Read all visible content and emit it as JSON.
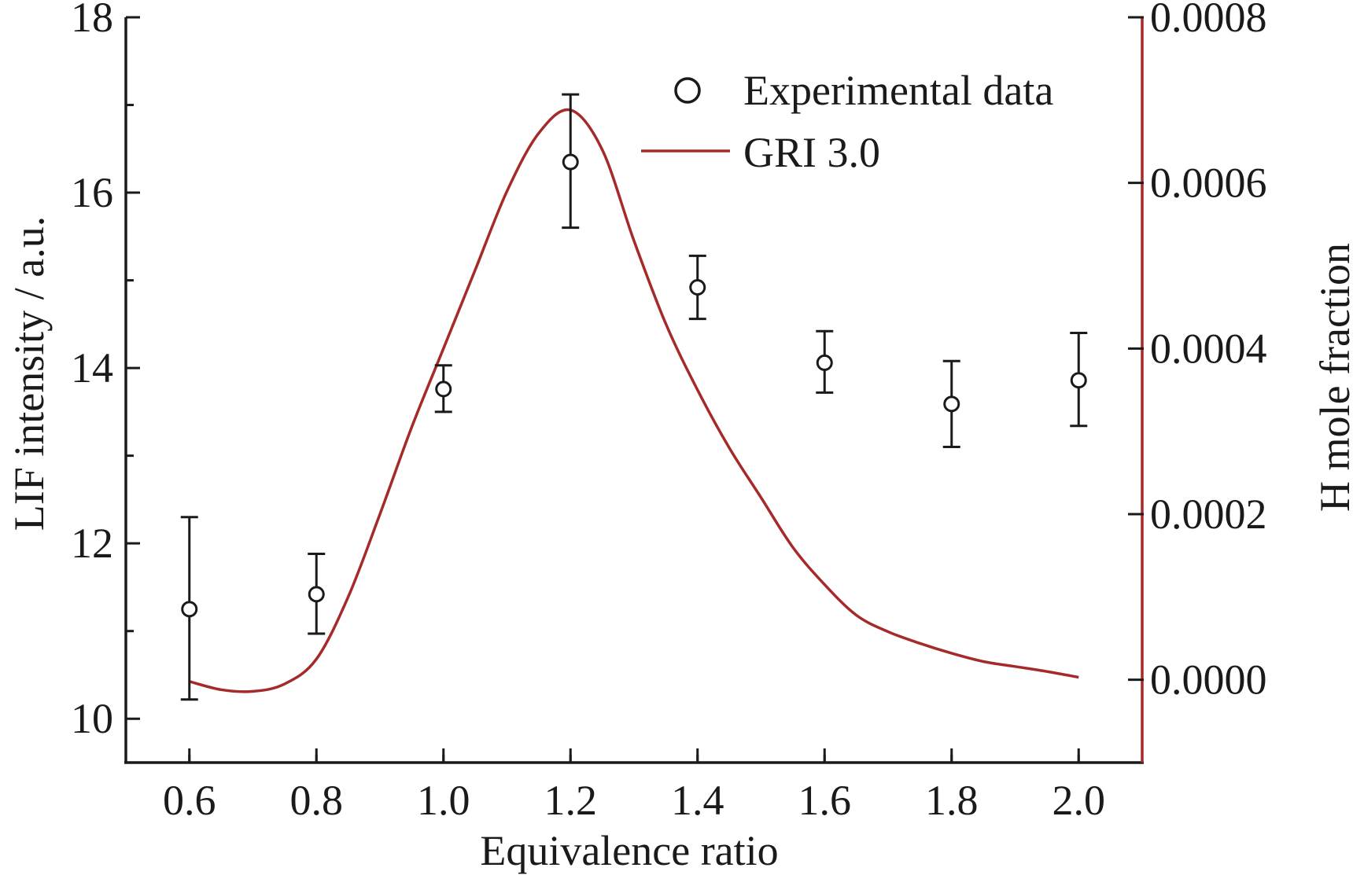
{
  "chart_data": {
    "type": "scatter",
    "xlabel": "Equivalence ratio",
    "ylabel": "LIF intensity / a.u.",
    "y2label": "H mole fraction",
    "xlim": [
      0.5,
      2.1
    ],
    "ylim": [
      9.5,
      18
    ],
    "y2lim": [
      -0.0001,
      0.0008
    ],
    "x_ticks": [
      "0.6",
      "0.8",
      "1.0",
      "1.2",
      "1.4",
      "1.6",
      "1.8",
      "2.0"
    ],
    "y_ticks": [
      "10",
      "12",
      "14",
      "16",
      "18"
    ],
    "y2_ticks": [
      "0.0000",
      "0.0002",
      "0.0004",
      "0.0006",
      "0.0008"
    ],
    "grid": false,
    "legend_position": "top-right",
    "colors": {
      "axis": "#1a1a1a",
      "left_axis": "#1a1a1a",
      "right_axis": "#a52a2a",
      "curve": "#a52a2a",
      "markers": "#1a1a1a"
    },
    "series": [
      {
        "name": "Experimental data",
        "axis": "left",
        "marker": "open-circle",
        "x": [
          0.6,
          0.8,
          1.0,
          1.2,
          1.4,
          1.6,
          1.8,
          2.0
        ],
        "y": [
          11.25,
          11.42,
          13.76,
          16.35,
          14.92,
          14.06,
          13.59,
          13.86
        ],
        "error_low": [
          10.22,
          10.97,
          13.5,
          15.6,
          14.56,
          13.72,
          13.1,
          13.34
        ],
        "error_high": [
          12.3,
          11.88,
          14.03,
          17.12,
          15.28,
          14.42,
          14.08,
          14.4
        ]
      },
      {
        "name": "GRI 3.0",
        "axis": "right",
        "style": "line",
        "x": [
          0.6,
          0.65,
          0.7,
          0.75,
          0.8,
          0.85,
          0.9,
          0.95,
          1.0,
          1.05,
          1.1,
          1.15,
          1.2,
          1.25,
          1.3,
          1.35,
          1.4,
          1.45,
          1.5,
          1.55,
          1.6,
          1.65,
          1.7,
          1.75,
          1.8,
          1.85,
          1.9,
          1.95,
          2.0
        ],
        "y": [
          -2e-06,
          -1.2e-05,
          -1.4e-05,
          -5e-06,
          2.5e-05,
          0.0001,
          0.0002,
          0.000305,
          0.0004,
          0.000495,
          0.00059,
          0.00066,
          0.000688,
          0.00064,
          0.00053,
          0.00043,
          0.00035,
          0.00028,
          0.00022,
          0.00016,
          0.000115,
          7.8e-05,
          5.8e-05,
          4.4e-05,
          3.2e-05,
          2.2e-05,
          1.6e-05,
          1e-05,
          3e-06
        ]
      }
    ]
  }
}
